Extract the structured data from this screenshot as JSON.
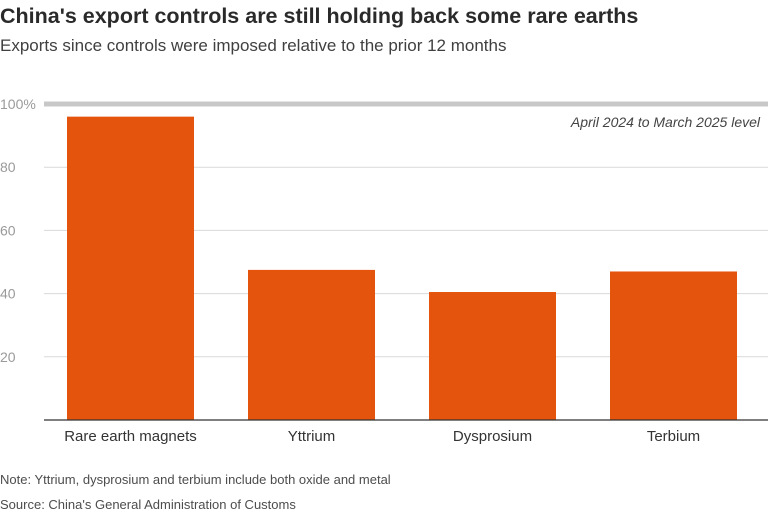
{
  "title": "China's export controls are still holding back some rare earths",
  "subtitle": "Exports since controls were imposed relative to the prior 12 months",
  "note": "Note: Yttrium, dysprosium and terbium include both oxide and metal",
  "source": "Source: China's General Administration of Customs",
  "chart_data": {
    "type": "bar",
    "title": "China's export controls are still holding back some rare earths",
    "subtitle": "Exports since controls were imposed relative to the prior 12 months",
    "xlabel": "",
    "ylabel": "",
    "categories": [
      "Rare earth magnets",
      "Yttrium",
      "Dysprosium",
      "Terbium"
    ],
    "values": [
      96,
      47.5,
      40.5,
      47
    ],
    "ylim": [
      0,
      100
    ],
    "yticks": [
      20,
      40,
      60,
      80,
      100
    ],
    "ytick_labels": [
      "20",
      "40",
      "60",
      "80",
      "100%"
    ],
    "reference_line": {
      "value": 100,
      "label": "April 2024 to March 2025 level"
    },
    "grid": true,
    "colors": {
      "bar": "#e4540d",
      "grid": "#d9d9d9",
      "reference": "#c8c8c8",
      "axis": "#333333"
    }
  }
}
